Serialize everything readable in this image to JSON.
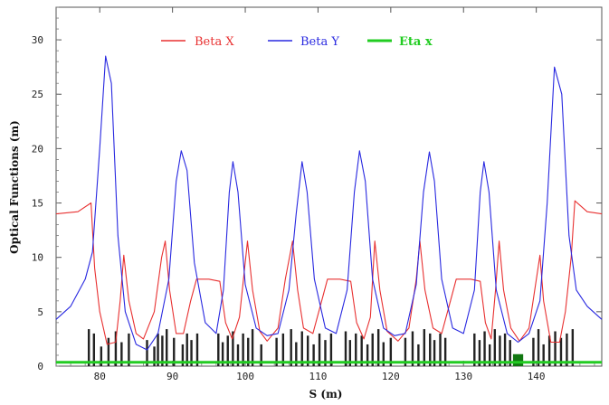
{
  "chart_data": {
    "type": "line",
    "title": "",
    "xlabel": "S (m)",
    "ylabel": "Optical Functions (m)",
    "xlim": [
      74,
      149
    ],
    "ylim": [
      0,
      33
    ],
    "x_ticks": [
      "80",
      "90",
      "100",
      "110",
      "120",
      "130",
      "140"
    ],
    "y_ticks": [
      "0",
      "5",
      "10",
      "15",
      "20",
      "25",
      "30"
    ],
    "legend_position": "top",
    "series": [
      {
        "name": "Beta X",
        "color": "#e83030",
        "points": [
          [
            74,
            14.0
          ],
          [
            77,
            14.2
          ],
          [
            78.8,
            15.0
          ],
          [
            79.3,
            9.0
          ],
          [
            80,
            5.0
          ],
          [
            81,
            2.0
          ],
          [
            82.2,
            2.2
          ],
          [
            82.8,
            6.0
          ],
          [
            83.3,
            10.2
          ],
          [
            84,
            6.0
          ],
          [
            85,
            3.0
          ],
          [
            86,
            2.5
          ],
          [
            87.5,
            5.0
          ],
          [
            88.5,
            10.0
          ],
          [
            89.0,
            11.5
          ],
          [
            89.6,
            7.0
          ],
          [
            90.5,
            3.0
          ],
          [
            91.5,
            3.0
          ],
          [
            92.5,
            6.0
          ],
          [
            93.3,
            8.0
          ],
          [
            95,
            8.0
          ],
          [
            96.5,
            7.8
          ],
          [
            97.3,
            4.0
          ],
          [
            98.2,
            2.5
          ],
          [
            99.2,
            4.5
          ],
          [
            100.3,
            11.5
          ],
          [
            101,
            7.0
          ],
          [
            102,
            3.2
          ],
          [
            103,
            2.3
          ],
          [
            104.5,
            3.5
          ],
          [
            105.5,
            8.0
          ],
          [
            106.5,
            11.5
          ],
          [
            107.2,
            7.0
          ],
          [
            108,
            3.5
          ],
          [
            109.3,
            3.0
          ],
          [
            110.5,
            6.0
          ],
          [
            111.3,
            8.0
          ],
          [
            113,
            8.0
          ],
          [
            114.5,
            7.8
          ],
          [
            115.3,
            4.0
          ],
          [
            116.3,
            2.5
          ],
          [
            117.2,
            4.5
          ],
          [
            117.8,
            11.5
          ],
          [
            118.5,
            7.0
          ],
          [
            119.5,
            3.2
          ],
          [
            121,
            2.3
          ],
          [
            122.5,
            3.5
          ],
          [
            123.5,
            8.0
          ],
          [
            124,
            11.5
          ],
          [
            124.7,
            7.0
          ],
          [
            125.8,
            3.5
          ],
          [
            127,
            3.0
          ],
          [
            128.2,
            6.0
          ],
          [
            129,
            8.0
          ],
          [
            131,
            8.0
          ],
          [
            132.3,
            7.8
          ],
          [
            133,
            4.0
          ],
          [
            133.8,
            2.5
          ],
          [
            134.4,
            7.0
          ],
          [
            134.9,
            11.5
          ],
          [
            135.5,
            7.0
          ],
          [
            136.5,
            3.5
          ],
          [
            137.7,
            2.3
          ],
          [
            139,
            3.5
          ],
          [
            140.5,
            10.2
          ],
          [
            141,
            6.0
          ],
          [
            142,
            2.2
          ],
          [
            143.2,
            2.2
          ],
          [
            144,
            5.0
          ],
          [
            144.8,
            10.0
          ],
          [
            145.3,
            15.2
          ],
          [
            147,
            14.2
          ],
          [
            149,
            14.0
          ]
        ]
      },
      {
        "name": "Beta Y",
        "color": "#2828e0",
        "points": [
          [
            74,
            4.3
          ],
          [
            76,
            5.5
          ],
          [
            78,
            8.0
          ],
          [
            79,
            10.5
          ],
          [
            80,
            20.0
          ],
          [
            80.8,
            28.5
          ],
          [
            81.6,
            26.0
          ],
          [
            82.5,
            12.0
          ],
          [
            83.5,
            5.0
          ],
          [
            85,
            2.0
          ],
          [
            86.5,
            1.5
          ],
          [
            88,
            3.0
          ],
          [
            89.5,
            8.0
          ],
          [
            90.5,
            17.0
          ],
          [
            91.2,
            19.8
          ],
          [
            92,
            18.0
          ],
          [
            93,
            9.5
          ],
          [
            94.5,
            4.0
          ],
          [
            96,
            3.0
          ],
          [
            97,
            7.0
          ],
          [
            97.8,
            16.0
          ],
          [
            98.3,
            18.8
          ],
          [
            99,
            16.0
          ],
          [
            100,
            7.5
          ],
          [
            101.5,
            3.5
          ],
          [
            103,
            2.8
          ],
          [
            104.5,
            3.0
          ],
          [
            106,
            7.0
          ],
          [
            107,
            14.0
          ],
          [
            107.8,
            18.8
          ],
          [
            108.5,
            16.0
          ],
          [
            109.5,
            8.0
          ],
          [
            111,
            3.5
          ],
          [
            112.5,
            3.0
          ],
          [
            114,
            7.0
          ],
          [
            115,
            16.0
          ],
          [
            115.7,
            19.8
          ],
          [
            116.5,
            17.0
          ],
          [
            117.5,
            8.0
          ],
          [
            119,
            3.5
          ],
          [
            120.5,
            2.8
          ],
          [
            122,
            3.0
          ],
          [
            123.5,
            7.5
          ],
          [
            124.5,
            16.0
          ],
          [
            125.3,
            19.7
          ],
          [
            126,
            17.0
          ],
          [
            127,
            8.0
          ],
          [
            128.5,
            3.5
          ],
          [
            130,
            3.0
          ],
          [
            131.5,
            7.0
          ],
          [
            132.3,
            16.0
          ],
          [
            132.8,
            18.8
          ],
          [
            133.5,
            16.0
          ],
          [
            134.5,
            7.0
          ],
          [
            136,
            3.0
          ],
          [
            137.5,
            2.2
          ],
          [
            139,
            3.0
          ],
          [
            140.5,
            6.0
          ],
          [
            141.5,
            15.0
          ],
          [
            142.5,
            27.5
          ],
          [
            143.5,
            25.0
          ],
          [
            144.5,
            12.0
          ],
          [
            145.5,
            7.0
          ],
          [
            147,
            5.5
          ],
          [
            149,
            4.3
          ]
        ]
      },
      {
        "name": "Eta x",
        "color": "#22cc22",
        "points": [
          [
            74,
            0.35
          ],
          [
            149,
            0.35
          ]
        ]
      }
    ],
    "lattice": {
      "magnet_color": "#222222",
      "magnets_x": [
        78.5,
        79.2,
        80.2,
        81.2,
        82.2,
        83.0,
        84.0,
        86.5,
        87.5,
        88.0,
        88.6,
        89.2,
        90.2,
        91.4,
        92.0,
        92.6,
        93.4,
        96.3,
        96.9,
        97.6,
        98.3,
        99.0,
        99.7,
        100.4,
        101.0,
        102.2,
        104.3,
        105.2,
        106.3,
        107.0,
        107.8,
        108.6,
        109.4,
        110.2,
        111.0,
        111.8,
        113.8,
        114.4,
        115.2,
        116.0,
        116.8,
        117.5,
        118.3,
        119.0,
        120.0,
        122.0,
        123.0,
        123.8,
        124.6,
        125.4,
        126.0,
        126.8,
        127.5,
        131.5,
        132.2,
        132.9,
        133.6,
        134.3,
        135.0,
        135.7,
        136.4,
        139.6,
        140.3,
        141.0,
        141.8,
        142.6,
        143.4,
        144.2,
        145.0
      ],
      "magnet_heights": [
        3.4,
        3.0,
        1.8,
        2.6,
        3.2,
        2.2,
        3.0,
        2.4,
        1.8,
        3.0,
        2.8,
        3.4,
        2.6,
        2.0,
        3.0,
        2.4,
        3.0,
        3.0,
        2.2,
        2.8,
        3.2,
        2.0,
        3.0,
        2.6,
        3.4,
        2.0,
        2.6,
        3.0,
        3.4,
        2.2,
        3.2,
        2.8,
        2.0,
        3.0,
        2.4,
        3.0,
        3.2,
        2.4,
        3.0,
        2.8,
        2.0,
        3.0,
        3.4,
        2.2,
        2.6,
        2.6,
        3.2,
        2.0,
        3.4,
        3.0,
        2.4,
        3.0,
        2.6,
        3.0,
        2.4,
        3.2,
        2.0,
        3.4,
        2.8,
        3.0,
        2.4,
        2.6,
        3.4,
        2.0,
        2.8,
        3.2,
        2.6,
        3.0,
        3.4
      ],
      "block_color": "#117711",
      "blocks": [
        [
          136.8,
          138.2,
          1.1
        ]
      ]
    }
  }
}
